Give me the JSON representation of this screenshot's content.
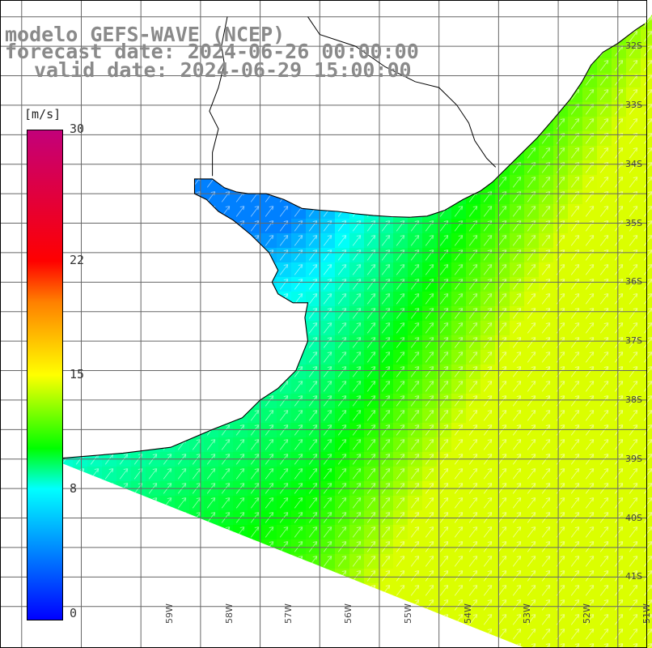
{
  "title": {
    "model": "modelo GEFS-WAVE (NCEP)",
    "forecast": "forecast date: 2024-06-26 00:00:00",
    "valid": "valid date: 2024-06-29 15:00:00"
  },
  "colorbar": {
    "unit": "[m/s]",
    "ticks": [
      "30",
      "22",
      "15",
      "8",
      "0"
    ],
    "tick_values": [
      30,
      22,
      15,
      8,
      0
    ],
    "range": [
      0,
      30
    ],
    "colors": [
      "#0000ff",
      "#00ffff",
      "#00ff00",
      "#ffff00",
      "#ff7f00",
      "#ff0000",
      "#c3007a"
    ]
  },
  "axes": {
    "lat_labels": [
      "32S",
      "33S",
      "34S",
      "35S",
      "36S",
      "37S",
      "38S",
      "39S",
      "40S",
      "41S"
    ],
    "lat_values": [
      32,
      33,
      34,
      35,
      36,
      37,
      38,
      39,
      40,
      41
    ],
    "lon_labels": [
      "59W",
      "58W",
      "57W",
      "56W",
      "55W",
      "54W",
      "53W",
      "52W",
      "51W"
    ],
    "lon_values": [
      59,
      58,
      57,
      56,
      55,
      54,
      53,
      52,
      51
    ]
  },
  "field": {
    "variable": "wind speed",
    "typical_direction": "NE"
  }
}
